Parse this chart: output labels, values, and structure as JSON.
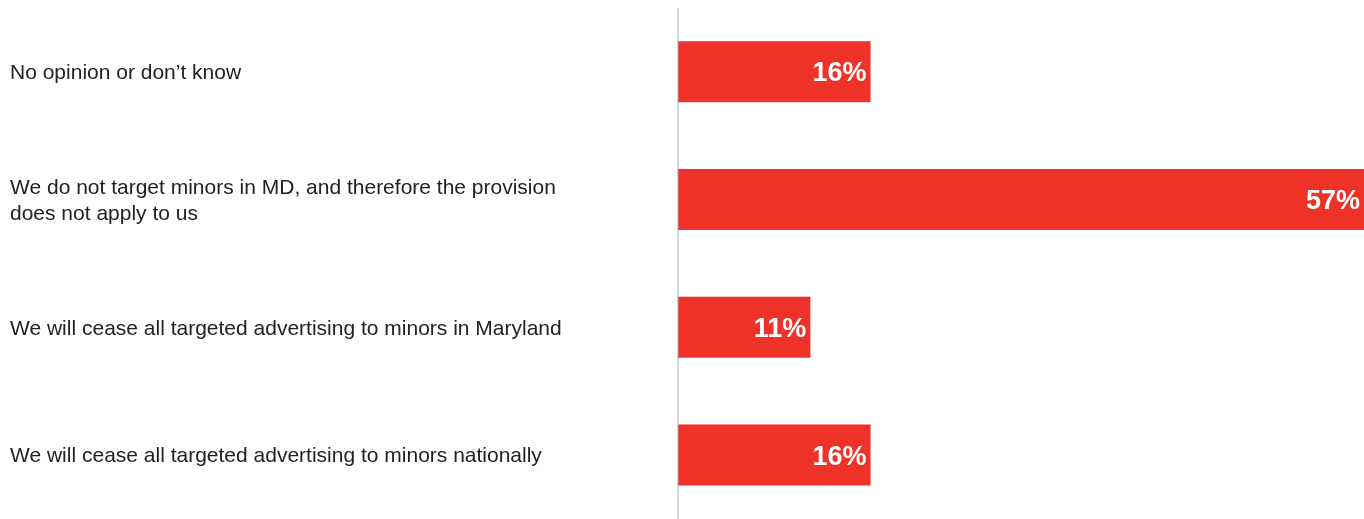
{
  "chart_data": {
    "type": "bar",
    "orientation": "horizontal",
    "categories": [
      "No opinion or don’t know",
      "We do not target minors in MD, and therefore the provision does not apply to us",
      "We will cease all targeted advertising to minors in Maryland",
      "We will cease all targeted advertising to minors nationally"
    ],
    "values": [
      16,
      57,
      11,
      16
    ],
    "value_labels": [
      "16%",
      "57%",
      "11%",
      "16%"
    ],
    "color": "#ee3228",
    "grid": false,
    "legend": false
  }
}
